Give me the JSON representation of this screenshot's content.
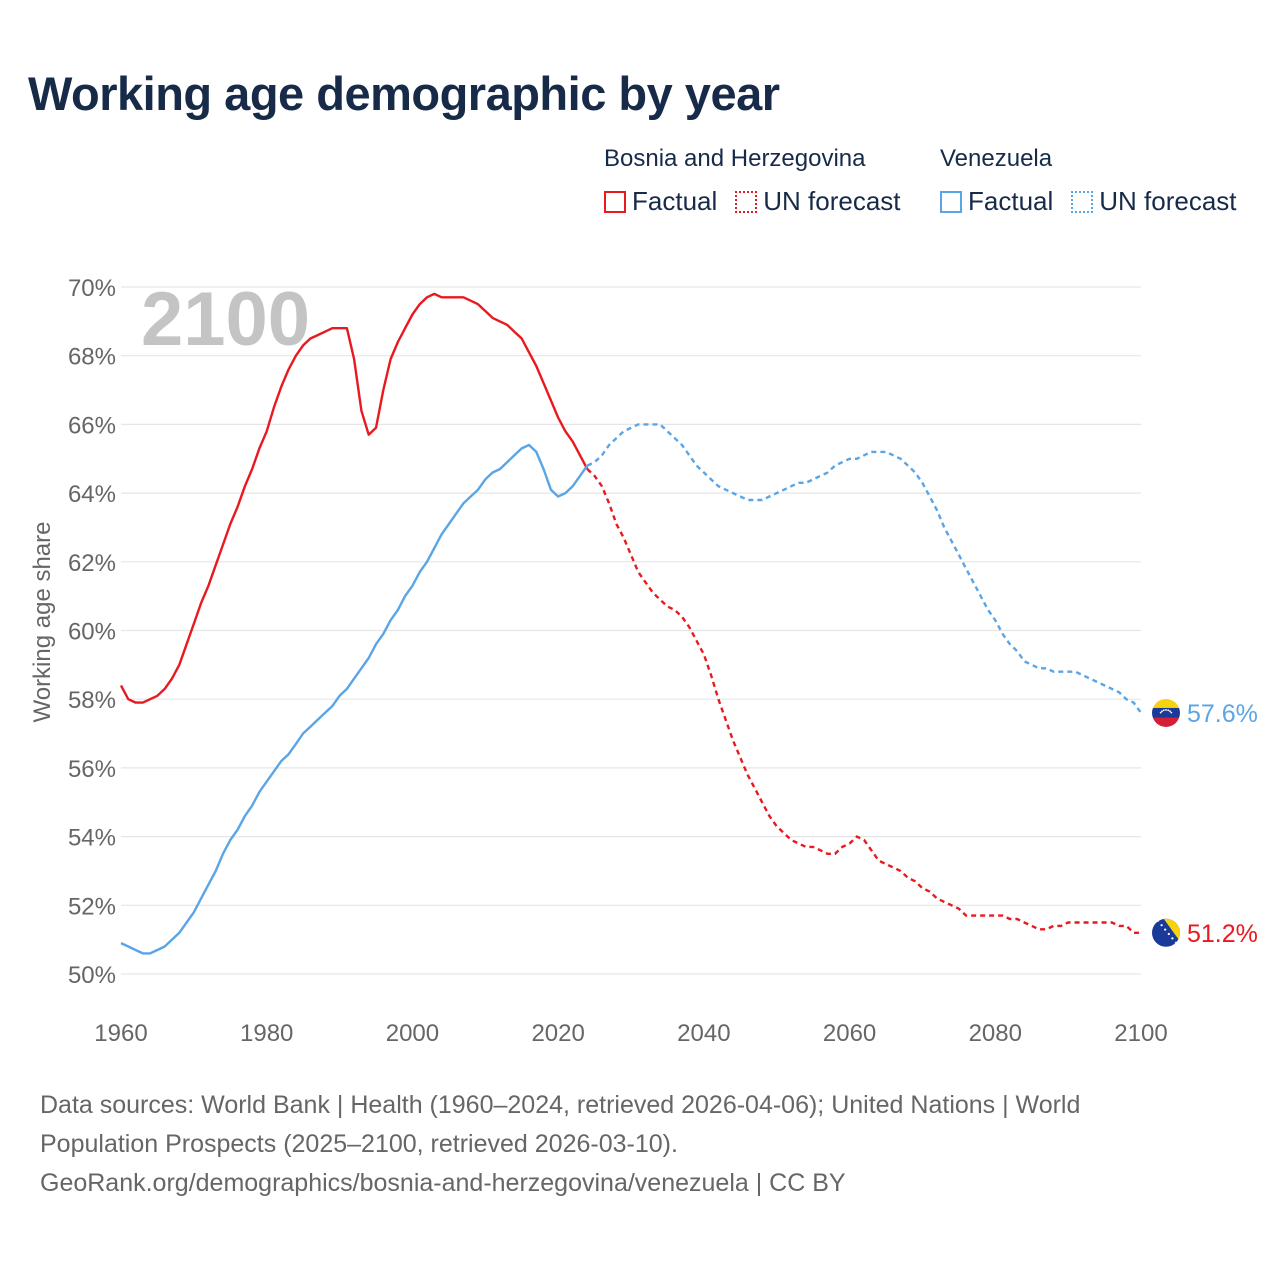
{
  "title": "Working age demographic by year",
  "legend": {
    "groups": [
      {
        "name": "Bosnia and Herzegovina",
        "color": "#e8191f",
        "factual_label": "Factual",
        "forecast_label": "UN forecast"
      },
      {
        "name": "Venezuela",
        "color": "#5aa5e6",
        "factual_label": "Factual",
        "forecast_label": "UN forecast"
      }
    ]
  },
  "footer": {
    "line1": "Data sources: World Bank | Health (1960–2024, retrieved 2026-04-06); United Nations | World",
    "line2": "Population Prospects (2025–2100, retrieved 2026-03-10).",
    "line3": "GeoRank.org/demographics/bosnia-and-herzegovina/venezuela | CC BY"
  },
  "chart_data": {
    "type": "line",
    "title": "Working age demographic by year",
    "year_label": "2100",
    "xlabel": "",
    "ylabel": "Working age share",
    "xlim": [
      1960,
      2100
    ],
    "ylim": [
      50,
      70
    ],
    "x_ticks": [
      "1960",
      "1980",
      "2000",
      "2020",
      "2040",
      "2060",
      "2080",
      "2100"
    ],
    "y_ticks": [
      "50%",
      "52%",
      "54%",
      "56%",
      "58%",
      "60%",
      "62%",
      "64%",
      "66%",
      "68%",
      "70%"
    ],
    "grid": true,
    "series": [
      {
        "name": "Bosnia and Herzegovina",
        "color": "#e8191f",
        "end_label": "51.2%",
        "factual": [
          [
            1960,
            58.4
          ],
          [
            1961,
            58.0
          ],
          [
            1962,
            57.9
          ],
          [
            1963,
            57.9
          ],
          [
            1964,
            58.0
          ],
          [
            1965,
            58.1
          ],
          [
            1966,
            58.3
          ],
          [
            1967,
            58.6
          ],
          [
            1968,
            59.0
          ],
          [
            1969,
            59.6
          ],
          [
            1970,
            60.2
          ],
          [
            1971,
            60.8
          ],
          [
            1972,
            61.3
          ],
          [
            1973,
            61.9
          ],
          [
            1974,
            62.5
          ],
          [
            1975,
            63.1
          ],
          [
            1976,
            63.6
          ],
          [
            1977,
            64.2
          ],
          [
            1978,
            64.7
          ],
          [
            1979,
            65.3
          ],
          [
            1980,
            65.8
          ],
          [
            1981,
            66.5
          ],
          [
            1982,
            67.1
          ],
          [
            1983,
            67.6
          ],
          [
            1984,
            68.0
          ],
          [
            1985,
            68.3
          ],
          [
            1986,
            68.5
          ],
          [
            1987,
            68.6
          ],
          [
            1988,
            68.7
          ],
          [
            1989,
            68.8
          ],
          [
            1990,
            68.8
          ],
          [
            1991,
            68.8
          ],
          [
            1992,
            67.9
          ],
          [
            1993,
            66.4
          ],
          [
            1994,
            65.7
          ],
          [
            1995,
            65.9
          ],
          [
            1996,
            67.0
          ],
          [
            1997,
            67.9
          ],
          [
            1998,
            68.4
          ],
          [
            1999,
            68.8
          ],
          [
            2000,
            69.2
          ],
          [
            2001,
            69.5
          ],
          [
            2002,
            69.7
          ],
          [
            2003,
            69.8
          ],
          [
            2004,
            69.7
          ],
          [
            2005,
            69.7
          ],
          [
            2006,
            69.7
          ],
          [
            2007,
            69.7
          ],
          [
            2008,
            69.6
          ],
          [
            2009,
            69.5
          ],
          [
            2010,
            69.3
          ],
          [
            2011,
            69.1
          ],
          [
            2012,
            69.0
          ],
          [
            2013,
            68.9
          ],
          [
            2014,
            68.7
          ],
          [
            2015,
            68.5
          ],
          [
            2016,
            68.1
          ],
          [
            2017,
            67.7
          ],
          [
            2018,
            67.2
          ],
          [
            2019,
            66.7
          ],
          [
            2020,
            66.2
          ],
          [
            2021,
            65.8
          ],
          [
            2022,
            65.5
          ],
          [
            2023,
            65.1
          ],
          [
            2024,
            64.7
          ]
        ],
        "forecast": [
          [
            2024,
            64.7
          ],
          [
            2025,
            64.5
          ],
          [
            2026,
            64.2
          ],
          [
            2027,
            63.7
          ],
          [
            2028,
            63.1
          ],
          [
            2029,
            62.7
          ],
          [
            2030,
            62.2
          ],
          [
            2031,
            61.7
          ],
          [
            2032,
            61.4
          ],
          [
            2033,
            61.1
          ],
          [
            2034,
            60.9
          ],
          [
            2035,
            60.7
          ],
          [
            2036,
            60.6
          ],
          [
            2037,
            60.4
          ],
          [
            2038,
            60.1
          ],
          [
            2039,
            59.7
          ],
          [
            2040,
            59.3
          ],
          [
            2041,
            58.7
          ],
          [
            2042,
            58.0
          ],
          [
            2043,
            57.4
          ],
          [
            2044,
            56.8
          ],
          [
            2045,
            56.3
          ],
          [
            2046,
            55.8
          ],
          [
            2047,
            55.4
          ],
          [
            2048,
            55.0
          ],
          [
            2049,
            54.6
          ],
          [
            2050,
            54.3
          ],
          [
            2051,
            54.1
          ],
          [
            2052,
            53.9
          ],
          [
            2053,
            53.8
          ],
          [
            2054,
            53.7
          ],
          [
            2055,
            53.7
          ],
          [
            2056,
            53.6
          ],
          [
            2057,
            53.5
          ],
          [
            2058,
            53.5
          ],
          [
            2059,
            53.7
          ],
          [
            2060,
            53.8
          ],
          [
            2061,
            54.0
          ],
          [
            2062,
            53.9
          ],
          [
            2063,
            53.6
          ],
          [
            2064,
            53.3
          ],
          [
            2065,
            53.2
          ],
          [
            2066,
            53.1
          ],
          [
            2067,
            53.0
          ],
          [
            2068,
            52.8
          ],
          [
            2069,
            52.7
          ],
          [
            2070,
            52.5
          ],
          [
            2071,
            52.4
          ],
          [
            2072,
            52.2
          ],
          [
            2073,
            52.1
          ],
          [
            2074,
            52.0
          ],
          [
            2075,
            51.9
          ],
          [
            2076,
            51.7
          ],
          [
            2077,
            51.7
          ],
          [
            2078,
            51.7
          ],
          [
            2079,
            51.7
          ],
          [
            2080,
            51.7
          ],
          [
            2081,
            51.7
          ],
          [
            2082,
            51.6
          ],
          [
            2083,
            51.6
          ],
          [
            2084,
            51.5
          ],
          [
            2085,
            51.4
          ],
          [
            2086,
            51.3
          ],
          [
            2087,
            51.3
          ],
          [
            2088,
            51.4
          ],
          [
            2089,
            51.4
          ],
          [
            2090,
            51.5
          ],
          [
            2091,
            51.5
          ],
          [
            2092,
            51.5
          ],
          [
            2093,
            51.5
          ],
          [
            2094,
            51.5
          ],
          [
            2095,
            51.5
          ],
          [
            2096,
            51.5
          ],
          [
            2097,
            51.4
          ],
          [
            2098,
            51.4
          ],
          [
            2099,
            51.2
          ],
          [
            2100,
            51.2
          ]
        ]
      },
      {
        "name": "Venezuela",
        "color": "#5aa5e6",
        "end_label": "57.6%",
        "factual": [
          [
            1960,
            50.9
          ],
          [
            1961,
            50.8
          ],
          [
            1962,
            50.7
          ],
          [
            1963,
            50.6
          ],
          [
            1964,
            50.6
          ],
          [
            1965,
            50.7
          ],
          [
            1966,
            50.8
          ],
          [
            1967,
            51.0
          ],
          [
            1968,
            51.2
          ],
          [
            1969,
            51.5
          ],
          [
            1970,
            51.8
          ],
          [
            1971,
            52.2
          ],
          [
            1972,
            52.6
          ],
          [
            1973,
            53.0
          ],
          [
            1974,
            53.5
          ],
          [
            1975,
            53.9
          ],
          [
            1976,
            54.2
          ],
          [
            1977,
            54.6
          ],
          [
            1978,
            54.9
          ],
          [
            1979,
            55.3
          ],
          [
            1980,
            55.6
          ],
          [
            1981,
            55.9
          ],
          [
            1982,
            56.2
          ],
          [
            1983,
            56.4
          ],
          [
            1984,
            56.7
          ],
          [
            1985,
            57.0
          ],
          [
            1986,
            57.2
          ],
          [
            1987,
            57.4
          ],
          [
            1988,
            57.6
          ],
          [
            1989,
            57.8
          ],
          [
            1990,
            58.1
          ],
          [
            1991,
            58.3
          ],
          [
            1992,
            58.6
          ],
          [
            1993,
            58.9
          ],
          [
            1994,
            59.2
          ],
          [
            1995,
            59.6
          ],
          [
            1996,
            59.9
          ],
          [
            1997,
            60.3
          ],
          [
            1998,
            60.6
          ],
          [
            1999,
            61.0
          ],
          [
            2000,
            61.3
          ],
          [
            2001,
            61.7
          ],
          [
            2002,
            62.0
          ],
          [
            2003,
            62.4
          ],
          [
            2004,
            62.8
          ],
          [
            2005,
            63.1
          ],
          [
            2006,
            63.4
          ],
          [
            2007,
            63.7
          ],
          [
            2008,
            63.9
          ],
          [
            2009,
            64.1
          ],
          [
            2010,
            64.4
          ],
          [
            2011,
            64.6
          ],
          [
            2012,
            64.7
          ],
          [
            2013,
            64.9
          ],
          [
            2014,
            65.1
          ],
          [
            2015,
            65.3
          ],
          [
            2016,
            65.4
          ],
          [
            2017,
            65.2
          ],
          [
            2018,
            64.7
          ],
          [
            2019,
            64.1
          ],
          [
            2020,
            63.9
          ],
          [
            2021,
            64.0
          ],
          [
            2022,
            64.2
          ],
          [
            2023,
            64.5
          ],
          [
            2024,
            64.8
          ]
        ],
        "forecast": [
          [
            2024,
            64.8
          ],
          [
            2025,
            64.9
          ],
          [
            2026,
            65.1
          ],
          [
            2027,
            65.4
          ],
          [
            2028,
            65.6
          ],
          [
            2029,
            65.8
          ],
          [
            2030,
            65.9
          ],
          [
            2031,
            66.0
          ],
          [
            2032,
            66.0
          ],
          [
            2033,
            66.0
          ],
          [
            2034,
            66.0
          ],
          [
            2035,
            65.8
          ],
          [
            2036,
            65.6
          ],
          [
            2037,
            65.4
          ],
          [
            2038,
            65.1
          ],
          [
            2039,
            64.8
          ],
          [
            2040,
            64.6
          ],
          [
            2041,
            64.4
          ],
          [
            2042,
            64.2
          ],
          [
            2043,
            64.1
          ],
          [
            2044,
            64.0
          ],
          [
            2045,
            63.9
          ],
          [
            2046,
            63.8
          ],
          [
            2047,
            63.8
          ],
          [
            2048,
            63.8
          ],
          [
            2049,
            63.9
          ],
          [
            2050,
            64.0
          ],
          [
            2051,
            64.1
          ],
          [
            2052,
            64.2
          ],
          [
            2053,
            64.3
          ],
          [
            2054,
            64.3
          ],
          [
            2055,
            64.4
          ],
          [
            2056,
            64.5
          ],
          [
            2057,
            64.6
          ],
          [
            2058,
            64.8
          ],
          [
            2059,
            64.9
          ],
          [
            2060,
            65.0
          ],
          [
            2061,
            65.0
          ],
          [
            2062,
            65.1
          ],
          [
            2063,
            65.2
          ],
          [
            2064,
            65.2
          ],
          [
            2065,
            65.2
          ],
          [
            2066,
            65.1
          ],
          [
            2067,
            65.0
          ],
          [
            2068,
            64.8
          ],
          [
            2069,
            64.6
          ],
          [
            2070,
            64.3
          ],
          [
            2071,
            63.9
          ],
          [
            2072,
            63.5
          ],
          [
            2073,
            63.0
          ],
          [
            2074,
            62.6
          ],
          [
            2075,
            62.2
          ],
          [
            2076,
            61.8
          ],
          [
            2077,
            61.4
          ],
          [
            2078,
            61.0
          ],
          [
            2079,
            60.6
          ],
          [
            2080,
            60.3
          ],
          [
            2081,
            59.9
          ],
          [
            2082,
            59.6
          ],
          [
            2083,
            59.4
          ],
          [
            2084,
            59.1
          ],
          [
            2085,
            59.0
          ],
          [
            2086,
            58.9
          ],
          [
            2087,
            58.9
          ],
          [
            2088,
            58.8
          ],
          [
            2089,
            58.8
          ],
          [
            2090,
            58.8
          ],
          [
            2091,
            58.8
          ],
          [
            2092,
            58.7
          ],
          [
            2093,
            58.6
          ],
          [
            2094,
            58.5
          ],
          [
            2095,
            58.4
          ],
          [
            2096,
            58.3
          ],
          [
            2097,
            58.2
          ],
          [
            2098,
            58.0
          ],
          [
            2099,
            57.9
          ],
          [
            2100,
            57.6
          ]
        ]
      }
    ]
  }
}
